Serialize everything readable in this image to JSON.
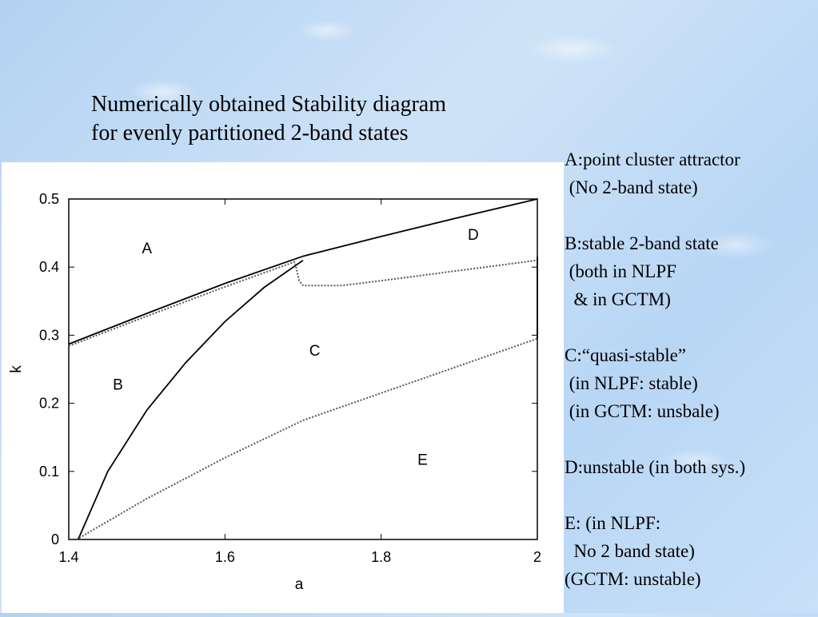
{
  "title": {
    "line1": "Numerically obtained Stability diagram",
    "line2": "for evenly partitioned 2-band states"
  },
  "legend": [
    "A:point cluster attractor",
    " (No 2-band state)",
    "",
    "B:stable 2-band state",
    " (both in NLPF",
    "  & in GCTM)",
    "",
    "C:“quasi-stable”",
    " (in NLPF: stable)",
    " (in GCTM: unsbale)",
    "",
    "D:unstable (in both sys.)",
    "",
    "E: (in NLPF:",
    "  No 2 band state)",
    "(GCTM: unstable)"
  ],
  "chart_data": {
    "type": "line",
    "xlabel": "a",
    "ylabel": "k",
    "xlim": [
      1.4,
      2.0
    ],
    "ylim": [
      0,
      0.5
    ],
    "xticks": [
      1.4,
      1.6,
      1.8,
      2.0
    ],
    "xtick_labels": [
      "1.4",
      "1.6",
      "1.8",
      "2"
    ],
    "yticks": [
      0,
      0.1,
      0.2,
      0.3,
      0.4,
      0.5
    ],
    "ytick_labels": [
      "0",
      "0.1",
      "0.2",
      "0.3",
      "0.4",
      "0.5"
    ],
    "grid": false,
    "series": [
      {
        "style": "solid",
        "x": [
          1.4,
          1.5,
          1.6,
          1.7,
          1.8,
          1.9,
          2.0
        ],
        "y": [
          0.287,
          0.332,
          0.376,
          0.416,
          0.445,
          0.473,
          0.5
        ]
      },
      {
        "style": "dotted",
        "x": [
          1.4,
          1.5,
          1.6,
          1.69
        ],
        "y": [
          0.284,
          0.328,
          0.371,
          0.408
        ]
      },
      {
        "style": "solid",
        "x": [
          1.412,
          1.45,
          1.5,
          1.55,
          1.6,
          1.65,
          1.7
        ],
        "y": [
          0.0,
          0.1,
          0.19,
          0.26,
          0.32,
          0.37,
          0.41
        ]
      },
      {
        "style": "dotted",
        "x": [
          1.69,
          1.695,
          1.7,
          1.75,
          1.8,
          1.9,
          2.0
        ],
        "y": [
          0.405,
          0.38,
          0.373,
          0.373,
          0.38,
          0.395,
          0.41
        ]
      },
      {
        "style": "dotted",
        "x": [
          1.41,
          1.5,
          1.6,
          1.7,
          1.8,
          1.9,
          2.0
        ],
        "y": [
          0.0,
          0.06,
          0.12,
          0.175,
          0.215,
          0.255,
          0.295
        ]
      },
      {
        "style": "solid",
        "x": [
          2.0,
          2.0
        ],
        "y": [
          0.295,
          0.415
        ]
      }
    ],
    "annotations": [
      {
        "text": "A",
        "x": 1.5,
        "y": 0.42
      },
      {
        "text": "B",
        "x": 1.463,
        "y": 0.22
      },
      {
        "text": "C",
        "x": 1.715,
        "y": 0.27
      },
      {
        "text": "D",
        "x": 1.918,
        "y": 0.44
      },
      {
        "text": "E",
        "x": 1.853,
        "y": 0.11
      }
    ]
  }
}
